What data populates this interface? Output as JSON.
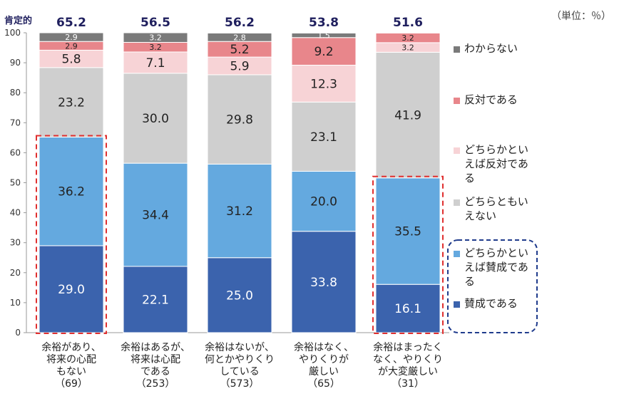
{
  "unit_label": "（単位：％）",
  "positive_label": "肯定的",
  "chart_data": {
    "type": "bar",
    "stacked": true,
    "ylim": [
      0,
      100
    ],
    "yticks": [
      0,
      10,
      20,
      30,
      40,
      50,
      60,
      70,
      80,
      90,
      100
    ],
    "grid": false,
    "legend_position": "right",
    "categories": [
      "余裕があり、将来の心配もない（69）",
      "余裕はあるが、将来は心配である（253）",
      "余裕はないが、何とかやりくりしている（573）",
      "余裕はなく、やりくりが厳しい（65）",
      "余裕はまったくなく、やりくりが大変厳しい（31）"
    ],
    "category_lines": [
      [
        "余裕があり、",
        "将来の心配",
        "もない",
        "（69）"
      ],
      [
        "余裕はあるが、",
        "将来は心配",
        "である",
        "（253）"
      ],
      [
        "余裕はないが、",
        "何とかやりくり",
        "している",
        "（573）"
      ],
      [
        "余裕はなく、",
        "やりくりが",
        "厳しい",
        "（65）"
      ],
      [
        "余裕はまったく",
        "なく、やりくり",
        "が大変厳しい",
        "（31）"
      ]
    ],
    "positive_totals": [
      "65.2",
      "56.5",
      "56.2",
      "53.8",
      "51.6"
    ],
    "highlighted_categories": [
      0,
      4
    ],
    "series": [
      {
        "name": "賛成である",
        "color": "#3b63ad",
        "text_color": "#ffffff",
        "values": [
          29.0,
          22.1,
          25.0,
          33.8,
          16.1
        ],
        "labels": [
          "29.0",
          "22.1",
          "25.0",
          "33.8",
          "16.1"
        ]
      },
      {
        "name": "どちらかといえば賛成である",
        "color": "#64a9df",
        "text_color": "#222222",
        "values": [
          36.2,
          34.4,
          31.2,
          20.0,
          35.5
        ],
        "labels": [
          "36.2",
          "34.4",
          "31.2",
          "20.0",
          "35.5"
        ]
      },
      {
        "name": "どちらともいえない",
        "color": "#cfcfcf",
        "text_color": "#222222",
        "values": [
          23.2,
          30.0,
          29.8,
          23.1,
          41.9
        ],
        "labels": [
          "23.2",
          "30.0",
          "29.8",
          "23.1",
          "41.9"
        ]
      },
      {
        "name": "どちらかといえば反対である",
        "color": "#f7d3d6",
        "text_color": "#222222",
        "values": [
          5.8,
          7.1,
          5.9,
          12.3,
          3.2
        ],
        "labels": [
          "5.8",
          "7.1",
          "5.9",
          "12.3",
          "3.2"
        ]
      },
      {
        "name": "反対である",
        "color": "#e8868b",
        "text_color": "#222222",
        "values": [
          2.9,
          3.2,
          5.2,
          9.2,
          3.2
        ],
        "labels": [
          "2.9",
          "3.2",
          "5.2",
          "9.2",
          "3.2"
        ]
      },
      {
        "name": "わからない",
        "color": "#7a7a7a",
        "text_color": "#ffffff",
        "values": [
          2.9,
          3.2,
          2.8,
          1.5,
          0
        ],
        "labels": [
          "2.9",
          "3.2",
          "2.8",
          "1.5",
          ""
        ]
      }
    ]
  },
  "legend": [
    {
      "lines": [
        "わからない"
      ],
      "color": "#7a7a7a"
    },
    {
      "lines": [
        "反対である"
      ],
      "color": "#e8868b"
    },
    {
      "lines": [
        "どちらかとい",
        "えば反対であ",
        "る"
      ],
      "color": "#f7d3d6"
    },
    {
      "lines": [
        "どちらともい",
        "えない"
      ],
      "color": "#cfcfcf"
    },
    {
      "lines": [
        "どちらかとい",
        "えば賛成であ",
        "る"
      ],
      "color": "#64a9df"
    },
    {
      "lines": [
        "賛成である"
      ],
      "color": "#3b63ad"
    }
  ],
  "legend_highlight_color": "#1f3b8c"
}
